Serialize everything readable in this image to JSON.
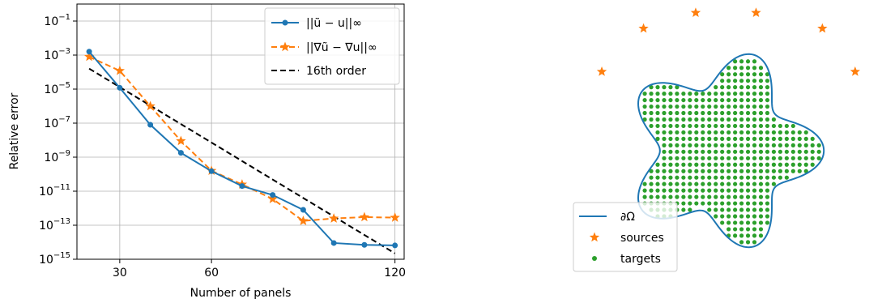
{
  "chart_data": [
    {
      "type": "line",
      "title": "",
      "xlabel": "Number of panels",
      "ylabel": "Relative error",
      "yscale": "log",
      "xlim": [
        16,
        123
      ],
      "ylim": [
        1e-15,
        1
      ],
      "grid": true,
      "legend_placement": "top-right",
      "x_ticks": [
        {
          "value": 30,
          "label": "30"
        },
        {
          "value": 60,
          "label": "60"
        },
        {
          "value": 120,
          "label": "120"
        }
      ],
      "y_ticks": [
        {
          "exp": -15,
          "base": "10",
          "sup": "−15"
        },
        {
          "exp": -13,
          "base": "10",
          "sup": "−13"
        },
        {
          "exp": -11,
          "base": "10",
          "sup": "−11"
        },
        {
          "exp": -9,
          "base": "10",
          "sup": "−9"
        },
        {
          "exp": -7,
          "base": "10",
          "sup": "−7"
        },
        {
          "exp": -5,
          "base": "10",
          "sup": "−5"
        },
        {
          "exp": -3,
          "base": "10",
          "sup": "−3"
        },
        {
          "exp": -1,
          "base": "10",
          "sup": "−1"
        }
      ],
      "series": [
        {
          "name": "||ũ − u||∞",
          "color": "#1f77b4",
          "marker": "circle",
          "dash": "solid",
          "x": [
            20,
            30,
            40,
            50,
            60,
            70,
            80,
            90,
            100,
            110,
            120
          ],
          "y": [
            0.0016,
            1.2e-05,
            8e-08,
            1.8e-09,
            1.5e-10,
            2e-11,
            6e-12,
            8e-13,
            9e-15,
            7e-15,
            6.5e-15
          ]
        },
        {
          "name": "||∇ũ − ∇u||∞",
          "color": "#ff7f0e",
          "marker": "star",
          "dash": "dashed",
          "x": [
            20,
            30,
            40,
            50,
            60,
            70,
            80,
            90,
            100,
            110,
            120
          ],
          "y": [
            0.0008,
            0.00012,
            1e-06,
            9e-09,
            1.6e-10,
            2.5e-11,
            3.5e-12,
            1.8e-13,
            2.5e-13,
            3e-13,
            2.8e-13
          ]
        },
        {
          "name": "16th order",
          "color": "#000000",
          "marker": "none",
          "dash": "dashed",
          "x": [
            20,
            120
          ],
          "y": [
            0.00016,
            2.2e-15
          ]
        }
      ]
    },
    {
      "type": "scatter",
      "title": "",
      "xlabel": "",
      "ylabel": "",
      "grid": false,
      "legend_placement": "lower-left",
      "boundary": {
        "name": "∂Ω",
        "color": "#1f77b4"
      },
      "sources": {
        "name": "sources",
        "color": "#ff7f0e",
        "points": [
          [
            -1.63,
            1.06
          ],
          [
            -1.07,
            1.64
          ],
          [
            -0.37,
            1.85
          ],
          [
            0.44,
            1.85
          ],
          [
            1.33,
            1.64
          ],
          [
            1.77,
            1.06
          ]
        ]
      },
      "targets": {
        "name": "targets",
        "color": "#2ca02c",
        "grid_step": 0.0866
      }
    }
  ]
}
